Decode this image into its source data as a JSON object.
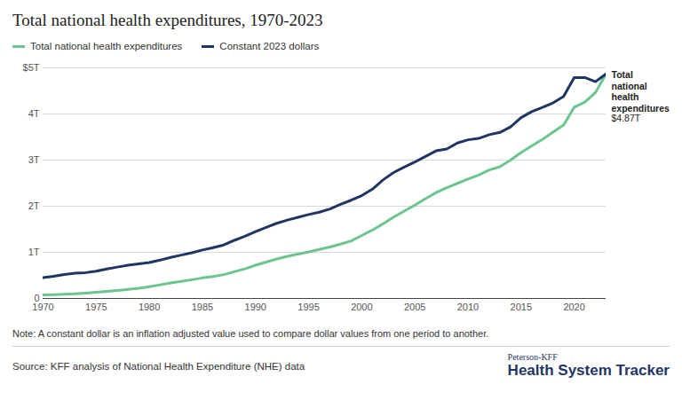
{
  "chart_data": {
    "type": "line",
    "title": "Total national health expenditures, 1970-2023",
    "x": [
      1970,
      1971,
      1972,
      1973,
      1974,
      1975,
      1976,
      1977,
      1978,
      1979,
      1980,
      1981,
      1982,
      1983,
      1984,
      1985,
      1986,
      1987,
      1988,
      1989,
      1990,
      1991,
      1992,
      1993,
      1994,
      1995,
      1996,
      1997,
      1998,
      1999,
      2000,
      2001,
      2002,
      2003,
      2004,
      2005,
      2006,
      2007,
      2008,
      2009,
      2010,
      2011,
      2012,
      2013,
      2014,
      2015,
      2016,
      2017,
      2018,
      2019,
      2020,
      2021,
      2022,
      2023
    ],
    "series": [
      {
        "name": "Total national health expenditures",
        "color": "#6cc48e",
        "values": [
          0.075,
          0.083,
          0.093,
          0.103,
          0.117,
          0.134,
          0.153,
          0.174,
          0.195,
          0.221,
          0.255,
          0.296,
          0.335,
          0.369,
          0.406,
          0.445,
          0.476,
          0.517,
          0.579,
          0.642,
          0.721,
          0.789,
          0.855,
          0.912,
          0.96,
          1.011,
          1.061,
          1.115,
          1.178,
          1.247,
          1.365,
          1.482,
          1.617,
          1.764,
          1.893,
          2.025,
          2.164,
          2.296,
          2.403,
          2.495,
          2.589,
          2.677,
          2.785,
          2.856,
          3.001,
          3.163,
          3.308,
          3.446,
          3.604,
          3.758,
          4.145,
          4.256,
          4.464,
          4.87
        ]
      },
      {
        "name": "Constant 2023 dollars",
        "color": "#1f3564",
        "values": [
          0.45,
          0.48,
          0.52,
          0.55,
          0.56,
          0.59,
          0.64,
          0.68,
          0.72,
          0.75,
          0.78,
          0.83,
          0.89,
          0.94,
          0.99,
          1.05,
          1.1,
          1.16,
          1.26,
          1.35,
          1.45,
          1.54,
          1.63,
          1.7,
          1.76,
          1.82,
          1.87,
          1.94,
          2.04,
          2.13,
          2.23,
          2.37,
          2.57,
          2.73,
          2.85,
          2.96,
          3.08,
          3.2,
          3.24,
          3.37,
          3.44,
          3.47,
          3.55,
          3.6,
          3.72,
          3.92,
          4.05,
          4.14,
          4.24,
          4.38,
          4.79,
          4.79,
          4.7,
          4.87
        ]
      }
    ],
    "xlim": [
      1970,
      2023
    ],
    "xticks": [
      1970,
      1975,
      1980,
      1985,
      1990,
      1995,
      2000,
      2005,
      2010,
      2015,
      2020
    ],
    "ylim": [
      0,
      5
    ],
    "yticks": [
      0,
      {
        "value": 1,
        "label": "1T"
      },
      {
        "value": 2,
        "label": "2T"
      },
      {
        "value": 3,
        "label": "3T"
      },
      {
        "value": 4,
        "label": "4T"
      },
      {
        "value": 5,
        "label": "$5T"
      }
    ],
    "grid": true,
    "legend": "top-left",
    "annotations": [
      {
        "x": 2023,
        "y": 4.87,
        "text": "Total national health expenditures",
        "label": "$4.87T"
      }
    ],
    "note": "Note: A constant dollar is an inflation adjusted value used to compare dollar values from one period to another.",
    "source": "Source: KFF analysis of National Health Expenditure (NHE) data",
    "branding": [
      "Peterson-KFF",
      "Health System Tracker"
    ]
  }
}
